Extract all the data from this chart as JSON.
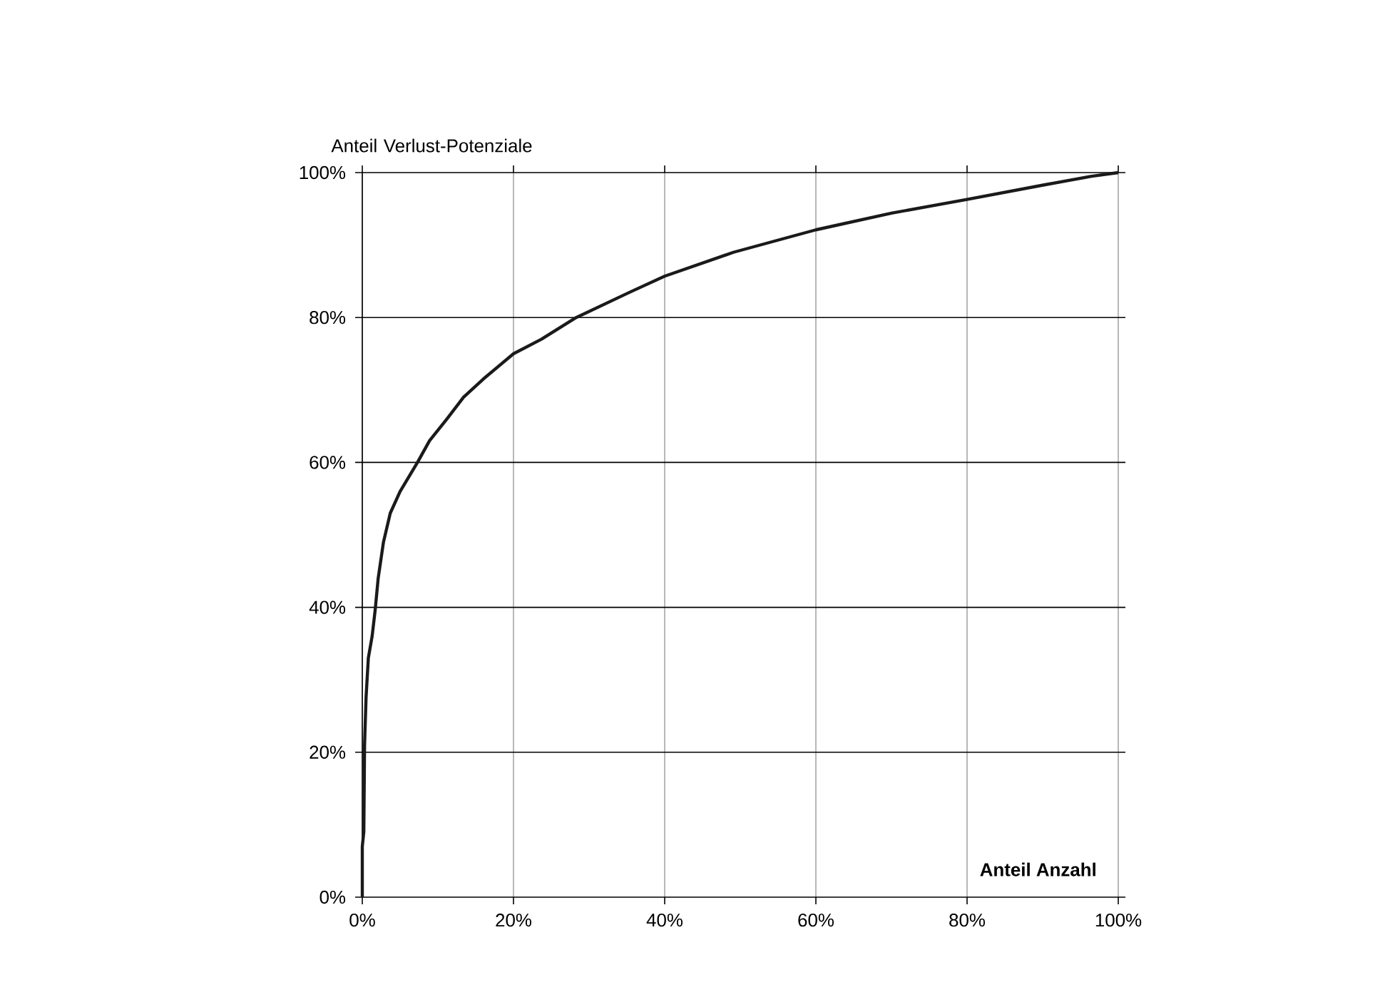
{
  "chart_data": {
    "type": "line",
    "xlabel": "Anteil Anzahl",
    "ylabel": "Anteil Verlust-Potenziale",
    "x": [
      0,
      0,
      0.2,
      0.3,
      0.5,
      0.8,
      1.3,
      1.7,
      2.1,
      2.8,
      3.7,
      5.0,
      7.3,
      8.9,
      11.2,
      13.4,
      16,
      20,
      23.7,
      28.3,
      35.4,
      40,
      49.1,
      60,
      70,
      80,
      90.2,
      96.5,
      100
    ],
    "series": [
      {
        "color": "#1a1a1a",
        "values": [
          0,
          7,
          9,
          21,
          27.6,
          33,
          36,
          39.6,
          44,
          49,
          53,
          56,
          60,
          63,
          66,
          69,
          71.5,
          75,
          77,
          80,
          83.5,
          85.7,
          89.0,
          92.1,
          94.4,
          96.3,
          98.3,
          99.5,
          100
        ]
      }
    ],
    "xlim": [
      0,
      100
    ],
    "ylim": [
      0,
      100
    ],
    "xticks": [
      {
        "value": 0,
        "label": "0%"
      },
      {
        "value": 20,
        "label": "20%"
      },
      {
        "value": 40,
        "label": "40%"
      },
      {
        "value": 60,
        "label": "60%"
      },
      {
        "value": 80,
        "label": "80%"
      },
      {
        "value": 100,
        "label": "100%"
      }
    ],
    "yticks": [
      {
        "value": 0,
        "label": "0%"
      },
      {
        "value": 20,
        "label": "20%"
      },
      {
        "value": 40,
        "label": "40%"
      },
      {
        "value": 60,
        "label": "60%"
      },
      {
        "value": 80,
        "label": "80%"
      },
      {
        "value": 100,
        "label": "100%"
      }
    ],
    "grid": true
  }
}
